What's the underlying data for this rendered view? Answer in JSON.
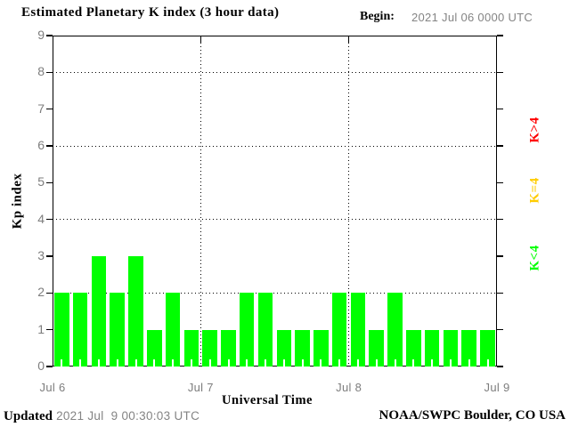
{
  "header": {
    "title": "Estimated Planetary K index (3 hour data)",
    "begin_label": "Begin:",
    "begin_value": "2021 Jul 06 0000 UTC"
  },
  "chart_data": {
    "type": "bar",
    "title": "Estimated Planetary K index (3 hour data)",
    "xlabel": "Universal Time",
    "ylabel": "Kp index",
    "ylim": [
      0,
      9
    ],
    "yticks": [
      0,
      1,
      2,
      3,
      4,
      5,
      6,
      7,
      8,
      9
    ],
    "grid_y": [
      2,
      4,
      6,
      8
    ],
    "grid_on": true,
    "bar_color": "#00ff00",
    "x_day_labels": [
      "Jul 6",
      "Jul 7",
      "Jul 8",
      "Jul 9"
    ],
    "interval_hours": 3,
    "values": [
      2,
      2,
      3,
      2,
      3,
      1,
      2,
      1,
      1,
      1,
      2,
      2,
      1,
      1,
      1,
      2,
      2,
      1,
      2,
      1,
      1,
      1,
      1,
      1
    ],
    "legend": [
      {
        "label": "K>4",
        "color": "#ff0000"
      },
      {
        "label": "K=4",
        "color": "#ffcc00"
      },
      {
        "label": "K<4",
        "color": "#00ff00"
      }
    ],
    "legend_position": "right"
  },
  "footer": {
    "updated_label": "Updated",
    "updated_value": "2021 Jul  9 00:30:03 UTC",
    "credit": "NOAA/SWPC Boulder, CO USA"
  }
}
